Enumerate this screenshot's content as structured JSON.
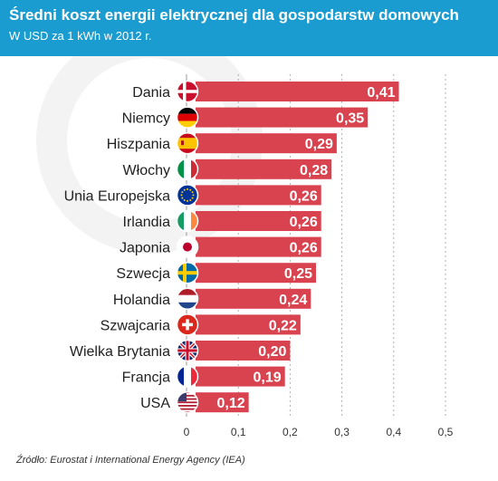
{
  "header": {
    "title": "Średni koszt energii elektrycznej dla gospodarstw domowych",
    "subtitle": "W USD za 1 kWh w 2012 r."
  },
  "source": "Źródło: Eurostat i International Energy Agency (IEA)",
  "colors": {
    "header_bg": "#1b9cd0",
    "bar": "#d9434f",
    "grid": "#b0b0b0",
    "value_text": "#ffffff"
  },
  "chart_data": {
    "type": "bar",
    "orientation": "horizontal",
    "categories": [
      "Dania",
      "Niemcy",
      "Hiszpania",
      "Włochy",
      "Unia Europejska",
      "Irlandia",
      "Japonia",
      "Szwecja",
      "Holandia",
      "Szwajcaria",
      "Wielka Brytania",
      "Francja",
      "USA"
    ],
    "values": [
      0.41,
      0.35,
      0.29,
      0.28,
      0.26,
      0.26,
      0.26,
      0.25,
      0.24,
      0.22,
      0.2,
      0.19,
      0.12
    ],
    "value_labels": [
      "0,41",
      "0,35",
      "0,29",
      "0,28",
      "0,26",
      "0,26",
      "0,26",
      "0,25",
      "0,24",
      "0,22",
      "0,20",
      "0,19",
      "0,12"
    ],
    "flags": [
      "denmark",
      "germany",
      "spain",
      "italy",
      "eu",
      "ireland",
      "japan",
      "sweden",
      "netherlands",
      "switzerland",
      "uk",
      "france",
      "usa"
    ],
    "xlim": [
      0,
      0.5
    ],
    "xticks": [
      0,
      0.1,
      0.2,
      0.3,
      0.4,
      0.5
    ],
    "xtick_labels": [
      "0",
      "0,1",
      "0,2",
      "0,3",
      "0,4",
      "0,5"
    ],
    "grid": "vertical dashed"
  }
}
